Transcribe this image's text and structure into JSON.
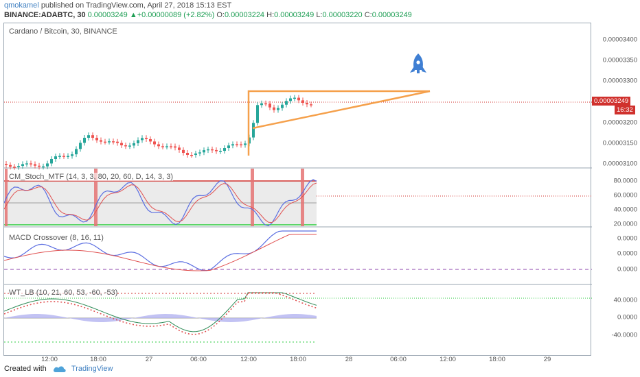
{
  "header": {
    "author": "qmokamel",
    "published": "published on TradingView.com, April 27, 2018 15:13 EST",
    "symbol": "BINANCE:ADABTC, 30",
    "last": "0.00003249",
    "change_arrow": "▲",
    "change": "+0.00000089 (+2.82%)",
    "o_label": "O:",
    "o": "0.00003224",
    "h_label": "H:",
    "h": "0.00003249",
    "l_label": "L:",
    "l": "0.00003220",
    "c_label": "C:",
    "c": "0.00003249"
  },
  "main_pane": {
    "title": "Cardano / Bitcoin, 30, BINANCE",
    "y_ticks": [
      "0.00003400",
      "0.00003350",
      "0.00003300",
      "0.00003200",
      "0.00003150",
      "0.00003100"
    ],
    "price_tag": "0.00003249",
    "countdown_tag": "16:32",
    "rocket_icon": "rocket-icon"
  },
  "stoch_pane": {
    "title": "CM_Stoch_MTF (14, 3, 3, 80, 20, 60, D, 14, 3, 3)",
    "y_ticks": [
      "80.0000",
      "60.0000",
      "40.0000",
      "20.0000"
    ]
  },
  "macd_pane": {
    "title": "MACD Crossover (8, 16, 11)",
    "y_ticks": [
      "0.0000",
      "0.0000",
      "0.0000"
    ]
  },
  "wt_pane": {
    "title": "WT_LB (10, 21, 60, 53, -60, -53)",
    "y_ticks": [
      "40.0000",
      "0.0000",
      "-40.0000"
    ]
  },
  "x_axis": [
    "12:00",
    "18:00",
    "27",
    "06:00",
    "12:00",
    "18:00",
    "28",
    "06:00",
    "12:00",
    "18:00",
    "29"
  ],
  "footer": {
    "created": "Created with",
    "brand": "TradingView"
  },
  "colors": {
    "up": "#26a69a",
    "down": "#ef5350",
    "triangle": "#f5a04b",
    "rocket": "#3f7fd3",
    "price_line": "#d0312d"
  }
}
